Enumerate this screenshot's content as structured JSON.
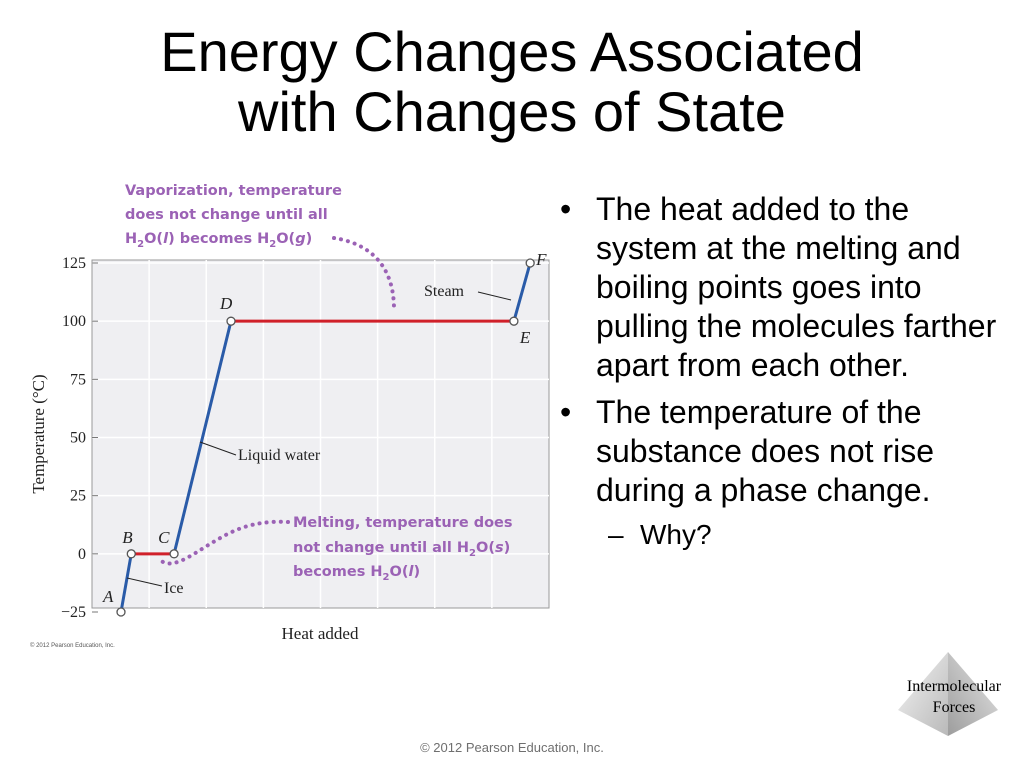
{
  "slide": {
    "title_line1": "Energy Changes Associated",
    "title_line2": "with Changes of State",
    "bullets": [
      "The heat added to the system at the melting and boiling points goes into pulling the molecules farther apart from each other.",
      "The temperature of the substance does not rise during a phase change."
    ],
    "sub_bullet": "Why?",
    "bullet_symbol": "•",
    "dash_symbol": "–",
    "logo_line1": "Intermolecular",
    "logo_line2": "Forces",
    "footer": "© 2012 Pearson Education, Inc.",
    "figure_credit": "© 2012 Pearson Education, Inc."
  },
  "chart_data": {
    "type": "line",
    "xlabel": "Heat added",
    "ylabel": "Temperature (°C)",
    "ylim": [
      -25,
      125
    ],
    "yticks": [
      125,
      100,
      75,
      50,
      25,
      0,
      -25
    ],
    "ytick_labels": [
      "125",
      "100",
      "75",
      "50",
      "25",
      "0",
      "−25"
    ],
    "grid": true,
    "xlim": [
      0,
      100
    ],
    "points": [
      {
        "label": "A",
        "x": 0,
        "y": -25
      },
      {
        "label": "B",
        "x": 2.4,
        "y": 0
      },
      {
        "label": "C",
        "x": 12.4,
        "y": 0
      },
      {
        "label": "D",
        "x": 25.7,
        "y": 100
      },
      {
        "label": "E",
        "x": 91.8,
        "y": 100
      },
      {
        "label": "F",
        "x": 95.6,
        "y": 125
      }
    ],
    "segments": [
      {
        "from": "A",
        "to": "B",
        "phase": "Ice",
        "color": "#2a5ba8"
      },
      {
        "from": "B",
        "to": "C",
        "phase": "Melting",
        "color": "#d0202a"
      },
      {
        "from": "C",
        "to": "D",
        "phase": "Liquid water",
        "color": "#2a5ba8"
      },
      {
        "from": "D",
        "to": "E",
        "phase": "Vaporization",
        "color": "#d0202a"
      },
      {
        "from": "E",
        "to": "F",
        "phase": "Steam",
        "color": "#2a5ba8"
      }
    ],
    "labels": {
      "steam": "Steam",
      "liquid": "Liquid water",
      "ice": "Ice"
    },
    "annotations": {
      "vaporization": {
        "line1": "Vaporization, temperature",
        "line2": "does not change until all",
        "line3": "H₂O(l) becomes H₂O(g)"
      },
      "melting": {
        "line1": "Melting, temperature does",
        "line2": "not change until all H₂O(s)",
        "line3": "becomes H₂O(l)"
      }
    },
    "colors": {
      "heating": "#2a5ba8",
      "phase_change": "#d0202a",
      "annotation": "#9b62b5",
      "plot_background": "#efeff2",
      "grid": "#ffffff"
    }
  }
}
